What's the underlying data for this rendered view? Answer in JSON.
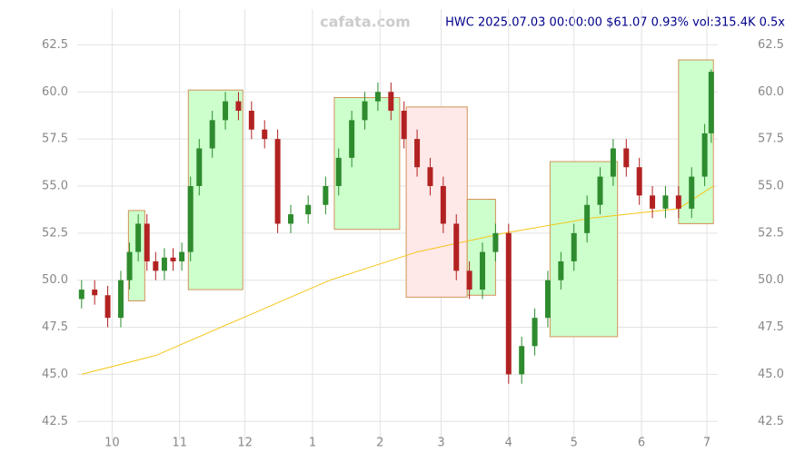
{
  "chart_data": {
    "type": "candlestick",
    "header": "HWC 2025.07.03 00:00:00 $61.07 0.93% vol:315.4K 0.5x",
    "watermark": "cafata.com",
    "xlim": [
      -16,
      278
    ],
    "ylim": [
      41.5,
      64.4
    ],
    "xticks": [
      {
        "value": 0,
        "label": "10"
      },
      {
        "value": 31,
        "label": "11"
      },
      {
        "value": 61,
        "label": "12"
      },
      {
        "value": 92,
        "label": "1"
      },
      {
        "value": 123,
        "label": "2"
      },
      {
        "value": 151,
        "label": "3"
      },
      {
        "value": 182,
        "label": "4"
      },
      {
        "value": 212,
        "label": "5"
      },
      {
        "value": 243,
        "label": "6"
      },
      {
        "value": 273,
        "label": "7"
      }
    ],
    "yticks": [
      42.5,
      {
        "value": 45,
        "label": "45.0"
      },
      47.5,
      {
        "value": 50,
        "label": "50.0"
      },
      52.5,
      {
        "value": 55,
        "label": "55.0"
      },
      57.5,
      {
        "value": 60,
        "label": "60.0"
      },
      62.5
    ],
    "grid": true,
    "up_color": "#2e8b2e",
    "down_color": "#b22222",
    "x": [
      -14,
      -8,
      -2,
      4,
      8,
      12,
      16,
      20,
      24,
      28,
      32,
      36,
      40,
      46,
      52,
      58,
      64,
      70,
      76,
      82,
      90,
      98,
      104,
      110,
      116,
      122,
      128,
      134,
      140,
      146,
      152,
      158,
      164,
      170,
      176,
      182,
      188,
      194,
      200,
      206,
      212,
      218,
      224,
      230,
      236,
      242,
      248,
      254,
      260,
      266,
      272,
      275
    ],
    "open": [
      49.0,
      49.5,
      49.2,
      48,
      50,
      51.5,
      53,
      51,
      50.5,
      51.2,
      51,
      51.5,
      55,
      57,
      58.5,
      59.5,
      59,
      58,
      57.5,
      53,
      53.5,
      54,
      55,
      56.5,
      58.5,
      59.5,
      60,
      59,
      57.5,
      56,
      55,
      53,
      50.5,
      49.5,
      51.5,
      52.5,
      45,
      46.5,
      48,
      50,
      51,
      52.5,
      54,
      55.5,
      57,
      56,
      54.5,
      53.8,
      54.5,
      53.8,
      55.5,
      57.8
    ],
    "high": [
      50.0,
      50.0,
      49.7,
      50.5,
      52.0,
      53.5,
      53.5,
      51.5,
      51.7,
      51.7,
      52.0,
      55.5,
      57.5,
      59.0,
      60.0,
      60.0,
      59.5,
      58.5,
      58.0,
      54.0,
      54.5,
      55.5,
      57.0,
      59.0,
      60.0,
      60.5,
      60.5,
      59.5,
      58.0,
      56.5,
      55.5,
      53.5,
      51.0,
      52.0,
      53.0,
      53.0,
      47.0,
      48.5,
      50.5,
      51.5,
      53.0,
      54.5,
      56.0,
      57.5,
      57.5,
      56.5,
      55.0,
      55.0,
      55.0,
      56.0,
      58.3,
      61.2
    ],
    "low": [
      48.5,
      48.7,
      47.5,
      47.5,
      49.5,
      51.0,
      50.5,
      50.0,
      50.0,
      50.5,
      50.5,
      51.0,
      54.5,
      56.5,
      58.0,
      58.5,
      57.5,
      57.0,
      52.5,
      52.5,
      53.0,
      53.5,
      54.5,
      56.0,
      58.0,
      59.0,
      58.5,
      57.0,
      55.5,
      54.5,
      52.5,
      50.0,
      49.0,
      49.0,
      51.0,
      44.5,
      44.5,
      46.0,
      47.5,
      49.5,
      50.5,
      52.0,
      53.5,
      55.0,
      55.5,
      54.0,
      53.3,
      53.3,
      53.3,
      53.3,
      55.0,
      57.3
    ],
    "close": [
      49.5,
      49.2,
      48,
      50,
      51.5,
      53,
      51,
      50.5,
      51.2,
      51,
      51.5,
      55,
      57,
      58.5,
      59.5,
      59,
      58,
      57.5,
      53,
      53.5,
      54,
      55,
      56.5,
      58.5,
      59.5,
      60,
      59,
      57.5,
      56,
      55,
      53,
      50.5,
      49.5,
      51.5,
      52.5,
      45,
      46.5,
      48,
      50,
      51,
      52.5,
      54,
      55.5,
      57,
      56,
      54.5,
      53.8,
      54.5,
      53.8,
      55.5,
      57.8,
      61.07
    ],
    "zones": [
      {
        "x": [
          7.5,
          15
        ],
        "y": [
          48.9,
          53.7
        ],
        "color": "#ccffcc"
      },
      {
        "x": [
          35,
          60
        ],
        "y": [
          49.5,
          60.1
        ],
        "color": "#ccffcc"
      },
      {
        "x": [
          102,
          132
        ],
        "y": [
          52.7,
          59.7
        ],
        "color": "#ccffcc"
      },
      {
        "x": [
          135,
          163
        ],
        "y": [
          49.1,
          59.2
        ],
        "color": "#ffe8e8"
      },
      {
        "x": [
          163,
          176
        ],
        "y": [
          49.2,
          54.3
        ],
        "color": "#ccffcc"
      },
      {
        "x": [
          201,
          232
        ],
        "y": [
          47,
          56.3
        ],
        "color": "#ccffcc"
      },
      {
        "x": [
          260,
          276
        ],
        "y": [
          53,
          61.7
        ],
        "color": "#ccffcc"
      }
    ],
    "lines": [
      {
        "color": "#f5c518",
        "x": [
          -14,
          20,
          60,
          100,
          140,
          180,
          220,
          260,
          276
        ],
        "values": [
          45,
          46,
          48,
          50,
          51.5,
          52.5,
          53.3,
          53.8,
          55
        ]
      }
    ]
  }
}
